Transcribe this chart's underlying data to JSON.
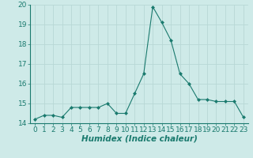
{
  "x": [
    0,
    1,
    2,
    3,
    4,
    5,
    6,
    7,
    8,
    9,
    10,
    11,
    12,
    13,
    14,
    15,
    16,
    17,
    18,
    19,
    20,
    21,
    22,
    23
  ],
  "y": [
    14.2,
    14.4,
    14.4,
    14.3,
    14.8,
    14.8,
    14.8,
    14.8,
    15.0,
    14.5,
    14.5,
    15.5,
    16.5,
    19.9,
    19.1,
    18.2,
    16.5,
    16.0,
    15.2,
    15.2,
    15.1,
    15.1,
    15.1,
    14.3
  ],
  "line_color": "#1a7a6e",
  "marker": "D",
  "marker_size": 2.0,
  "bg_color": "#ceeae8",
  "grid_color": "#b8d8d5",
  "xlabel": "Humidex (Indice chaleur)",
  "ylim": [
    14,
    20
  ],
  "xlim_min": -0.5,
  "xlim_max": 23.5,
  "yticks": [
    14,
    15,
    16,
    17,
    18,
    19,
    20
  ],
  "xticks": [
    0,
    1,
    2,
    3,
    4,
    5,
    6,
    7,
    8,
    9,
    10,
    11,
    12,
    13,
    14,
    15,
    16,
    17,
    18,
    19,
    20,
    21,
    22,
    23
  ],
  "xlabel_fontsize": 7.5,
  "tick_fontsize": 6.5
}
